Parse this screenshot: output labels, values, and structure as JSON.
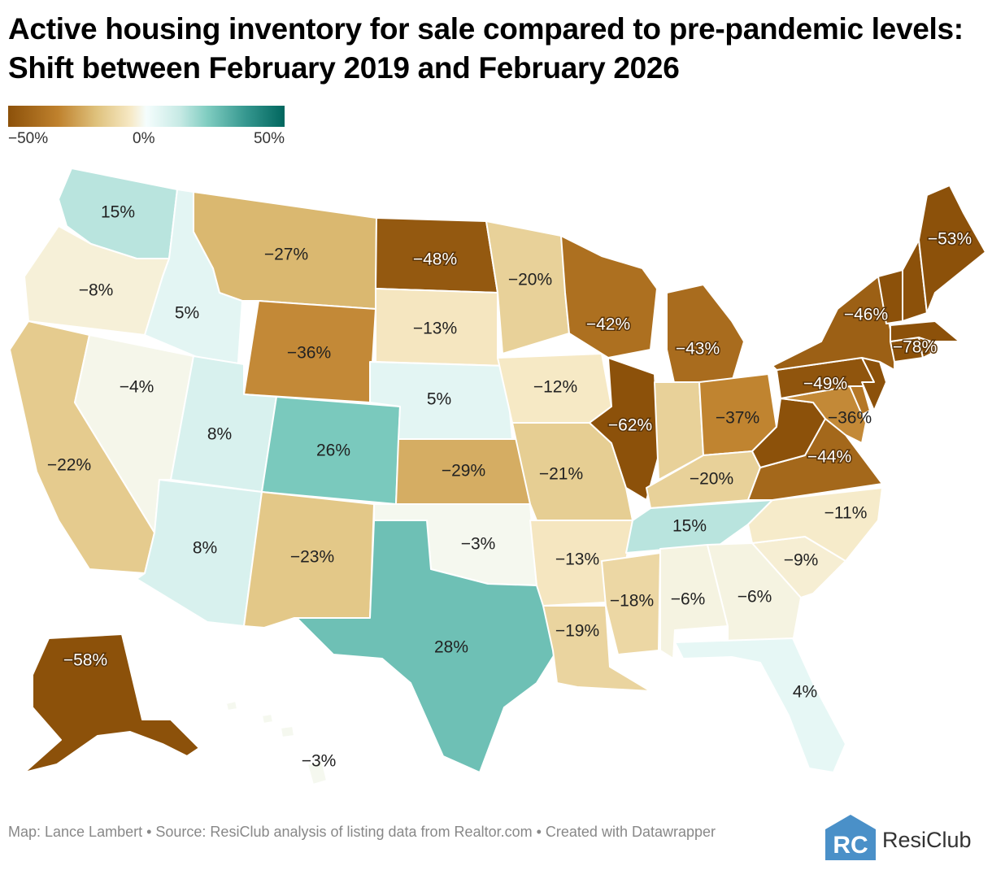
{
  "title": "Active housing inventory for sale compared to pre-pandemic levels: Shift between February 2019 and February 2026",
  "legend": {
    "min_label": "−50%",
    "mid_label": "0%",
    "max_label": "50%",
    "min_value": -50,
    "max_value": 50,
    "colors": [
      "#8c510a",
      "#bf812d",
      "#dfc27d",
      "#f6e8c3",
      "#f5fdfd",
      "#c7eae5",
      "#80cdc1",
      "#35978f",
      "#01665e"
    ]
  },
  "states": [
    {
      "id": "WA",
      "value": 15,
      "label": "15%"
    },
    {
      "id": "OR",
      "value": -8,
      "label": "−8%"
    },
    {
      "id": "CA",
      "value": -22,
      "label": "−22%"
    },
    {
      "id": "NV",
      "value": -4,
      "label": "−4%"
    },
    {
      "id": "ID",
      "value": 5,
      "label": "5%"
    },
    {
      "id": "MT",
      "value": -27,
      "label": "−27%"
    },
    {
      "id": "WY",
      "value": -36,
      "label": "−36%"
    },
    {
      "id": "UT",
      "value": 8,
      "label": "8%"
    },
    {
      "id": "AZ",
      "value": 8,
      "label": "8%"
    },
    {
      "id": "CO",
      "value": 26,
      "label": "26%"
    },
    {
      "id": "NM",
      "value": -23,
      "label": "−23%"
    },
    {
      "id": "ND",
      "value": -48,
      "label": "−48%"
    },
    {
      "id": "SD",
      "value": -13,
      "label": "−13%"
    },
    {
      "id": "NE",
      "value": 5,
      "label": "5%"
    },
    {
      "id": "KS",
      "value": -29,
      "label": "−29%"
    },
    {
      "id": "OK",
      "value": -3,
      "label": "−3%"
    },
    {
      "id": "TX",
      "value": 28,
      "label": "28%"
    },
    {
      "id": "MN",
      "value": -20,
      "label": "−20%"
    },
    {
      "id": "IA",
      "value": -12,
      "label": "−12%"
    },
    {
      "id": "MO",
      "value": -21,
      "label": "−21%"
    },
    {
      "id": "AR",
      "value": -13,
      "label": "−13%"
    },
    {
      "id": "LA",
      "value": -19,
      "label": "−19%"
    },
    {
      "id": "WI",
      "value": -42,
      "label": "−42%"
    },
    {
      "id": "IL",
      "value": -62,
      "label": "−62%"
    },
    {
      "id": "MI",
      "value": -43,
      "label": "−43%"
    },
    {
      "id": "IN",
      "value": -20,
      "label": ""
    },
    {
      "id": "OH",
      "value": -37,
      "label": "−37%"
    },
    {
      "id": "KY",
      "value": -20,
      "label": "−20%"
    },
    {
      "id": "TN",
      "value": 15,
      "label": "15%"
    },
    {
      "id": "MS",
      "value": -18,
      "label": "−18%"
    },
    {
      "id": "AL",
      "value": -6,
      "label": "−6%"
    },
    {
      "id": "GA",
      "value": -6,
      "label": "−6%"
    },
    {
      "id": "FL",
      "value": 4,
      "label": "4%"
    },
    {
      "id": "SC",
      "value": -9,
      "label": "−9%"
    },
    {
      "id": "NC",
      "value": -11,
      "label": "−11%"
    },
    {
      "id": "VA",
      "value": -44,
      "label": "−44%"
    },
    {
      "id": "WV",
      "value": -50,
      "label": ""
    },
    {
      "id": "MD",
      "value": -36,
      "label": "−36%"
    },
    {
      "id": "DE",
      "value": -40,
      "label": ""
    },
    {
      "id": "PA",
      "value": -49,
      "label": "−49%"
    },
    {
      "id": "NJ",
      "value": -50,
      "label": ""
    },
    {
      "id": "NY",
      "value": -46,
      "label": "−46%"
    },
    {
      "id": "CT",
      "value": -78,
      "label": "−78%"
    },
    {
      "id": "RI",
      "value": -60,
      "label": ""
    },
    {
      "id": "MA",
      "value": -55,
      "label": ""
    },
    {
      "id": "VT",
      "value": -55,
      "label": ""
    },
    {
      "id": "NH",
      "value": -60,
      "label": ""
    },
    {
      "id": "ME",
      "value": -53,
      "label": "−53%"
    },
    {
      "id": "AK",
      "value": -58,
      "label": "−58%"
    },
    {
      "id": "HI",
      "value": -3,
      "label": "−3%"
    }
  ],
  "footer": "Map: Lance Lambert • Source: ResiClub analysis of listing data from Realtor.com • Created with Datawrapper",
  "logo": {
    "text": "ResiClub",
    "mark": "RC"
  }
}
